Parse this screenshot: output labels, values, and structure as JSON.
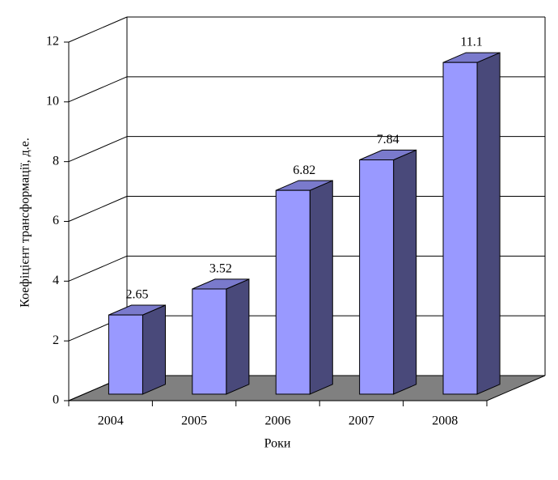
{
  "chart_data": {
    "type": "bar3d",
    "xlabel": "Роки",
    "ylabel": "Коефіцієнт трансформації, д.е.",
    "categories": [
      "2004",
      "2005",
      "2006",
      "2007",
      "2008"
    ],
    "values": [
      2.65,
      3.52,
      6.82,
      7.84,
      11.1
    ],
    "color": "#9999ff",
    "ylim": [
      0,
      12
    ],
    "yticks": [
      0,
      2,
      4,
      6,
      8,
      10,
      12
    ],
    "grid": true
  }
}
